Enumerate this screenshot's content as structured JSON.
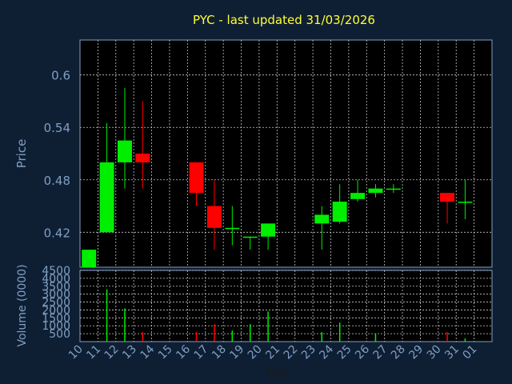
{
  "chart_data": [
    {
      "type": "candlestick",
      "title": "PYC - last updated 31/03/2026",
      "ylabel": "Price",
      "ylim": [
        0.38,
        0.64
      ],
      "yticks": [
        {
          "value": 0.42,
          "label": "0.42"
        },
        {
          "value": 0.48,
          "label": "0.48"
        },
        {
          "value": 0.54,
          "label": "0.54"
        },
        {
          "value": 0.6,
          "label": "0.6"
        }
      ],
      "grid": true,
      "colors": {
        "up": "#00ee00",
        "down": "#ff0000",
        "flat": "#00ee00"
      },
      "candles": [
        {
          "day": "10",
          "open": 0.38,
          "high": 0.4,
          "low": 0.38,
          "close": 0.4
        },
        {
          "day": "11",
          "open": 0.42,
          "high": 0.545,
          "low": 0.42,
          "close": 0.5
        },
        {
          "day": "12",
          "open": 0.5,
          "high": 0.585,
          "low": 0.47,
          "close": 0.525
        },
        {
          "day": "13",
          "open": 0.51,
          "high": 0.57,
          "low": 0.47,
          "close": 0.5
        },
        {
          "day": "16",
          "open": 0.5,
          "high": 0.5,
          "low": 0.45,
          "close": 0.465
        },
        {
          "day": "17",
          "open": 0.45,
          "high": 0.48,
          "low": 0.4,
          "close": 0.425
        },
        {
          "day": "18",
          "open": 0.425,
          "high": 0.45,
          "low": 0.405,
          "close": 0.425
        },
        {
          "day": "19",
          "open": 0.415,
          "high": 0.415,
          "low": 0.4,
          "close": 0.415
        },
        {
          "day": "20",
          "open": 0.415,
          "high": 0.43,
          "low": 0.4,
          "close": 0.43
        },
        {
          "day": "23",
          "open": 0.43,
          "high": 0.45,
          "low": 0.4,
          "close": 0.44
        },
        {
          "day": "24",
          "open": 0.432,
          "high": 0.475,
          "low": 0.43,
          "close": 0.455
        },
        {
          "day": "25",
          "open": 0.458,
          "high": 0.48,
          "low": 0.455,
          "close": 0.465
        },
        {
          "day": "26",
          "open": 0.465,
          "high": 0.475,
          "low": 0.46,
          "close": 0.47
        },
        {
          "day": "27",
          "open": 0.47,
          "high": 0.475,
          "low": 0.465,
          "close": 0.47
        },
        {
          "day": "30",
          "open": 0.465,
          "high": 0.465,
          "low": 0.43,
          "close": 0.455
        },
        {
          "day": "31",
          "open": 0.455,
          "high": 0.48,
          "low": 0.435,
          "close": 0.455
        }
      ]
    },
    {
      "type": "bar",
      "ylabel": "Volume (0000)",
      "xlabel": "Day",
      "ylim": [
        0,
        4500
      ],
      "yticks": [
        "500",
        "1000",
        "1500",
        "2000",
        "2500",
        "3000",
        "3500",
        "4000",
        "4500"
      ],
      "categories": [
        "10",
        "11",
        "12",
        "13",
        "14",
        "15",
        "16",
        "17",
        "18",
        "19",
        "20",
        "21",
        "22",
        "23",
        "24",
        "25",
        "26",
        "27",
        "28",
        "29",
        "30",
        "31",
        "01"
      ],
      "values": [
        0,
        3300,
        2100,
        600,
        0,
        0,
        600,
        1100,
        700,
        1100,
        1900,
        0,
        0,
        600,
        1200,
        0,
        500,
        0,
        0,
        0,
        600,
        200,
        0
      ],
      "bar_colors": [
        "#00ee00",
        "#00ee00",
        "#00ee00",
        "#ff0000",
        "#00ee00",
        "#00ee00",
        "#ff0000",
        "#ff0000",
        "#00ee00",
        "#00ee00",
        "#00ee00",
        "#00ee00",
        "#00ee00",
        "#00ee00",
        "#00ee00",
        "#00ee00",
        "#00ee00",
        "#00ee00",
        "#00ee00",
        "#00ee00",
        "#ff0000",
        "#00ee00",
        "#00ee00"
      ]
    }
  ]
}
